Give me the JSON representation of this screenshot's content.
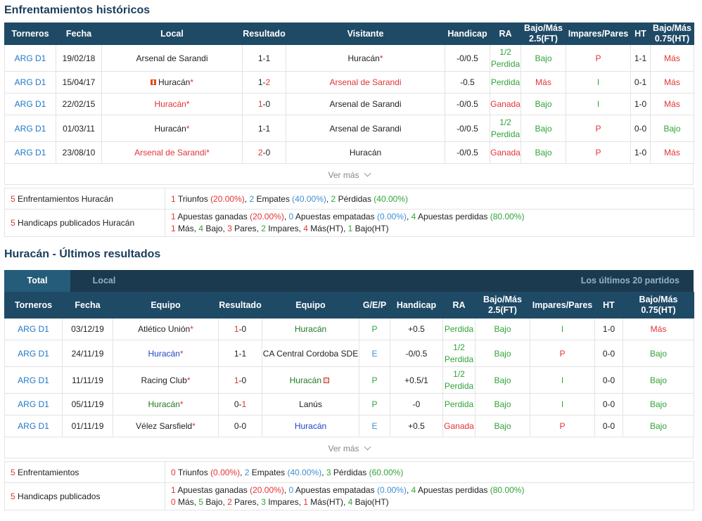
{
  "h2h": {
    "title": "Enfrentamientos históricos",
    "headers": [
      "Torneros",
      "Fecha",
      "Local",
      "Resultado",
      "Visitante",
      "Handicap",
      "RA",
      "Bajo/Más 2.5(FT)",
      "Impares/Pares",
      "HT",
      "Bajo/Más 0.75(HT)"
    ],
    "rows": [
      {
        "league": "ARG D1",
        "date": "19/02/18",
        "home": "Arsenal de Sarandi",
        "home_star": "",
        "score_a": "1",
        "score_sep": "-",
        "score_b": "1",
        "away": "Huracán",
        "away_star": "*",
        "handicap": "-0/0.5",
        "ra": "1/2 Perdida",
        "ou": "Bajo",
        "oe": "P",
        "ht": "1-1",
        "ouht": "Más"
      },
      {
        "league": "ARG D1",
        "date": "15/04/17",
        "home": "Huracán",
        "home_star": "*",
        "score_a": "1",
        "score_sep": "-",
        "score_b": "2",
        "away": "Arsenal de Sarandi",
        "away_star": "",
        "handicap": "-0.5",
        "ra": "Perdida",
        "ou": "Más",
        "oe": "I",
        "ht": "0-1",
        "ouht": "Más"
      },
      {
        "league": "ARG D1",
        "date": "22/02/15",
        "home": "Huracán",
        "home_star": "*",
        "score_a": "1",
        "score_sep": "-",
        "score_b": "0",
        "away": "Arsenal de Sarandi",
        "away_star": "",
        "handicap": "-0/0.5",
        "ra": "Ganada",
        "ou": "Bajo",
        "oe": "I",
        "ht": "1-0",
        "ouht": "Más"
      },
      {
        "league": "ARG D1",
        "date": "01/03/11",
        "home": "Huracán",
        "home_star": "*",
        "score_a": "1",
        "score_sep": "-",
        "score_b": "1",
        "away": "Arsenal de Sarandi",
        "away_star": "",
        "handicap": "-0/0.5",
        "ra": "1/2 Perdida",
        "ou": "Bajo",
        "oe": "P",
        "ht": "0-0",
        "ouht": "Bajo"
      },
      {
        "league": "ARG D1",
        "date": "23/08/10",
        "home": "Arsenal de Sarandi",
        "home_star": "*",
        "score_a": "2",
        "score_sep": "-",
        "score_b": "0",
        "away": "Huracán",
        "away_star": "",
        "handicap": "-0/0.5",
        "ra": "Ganada",
        "ou": "Bajo",
        "oe": "P",
        "ht": "1-0",
        "ouht": "Más"
      }
    ],
    "ver_mas": "Ver más",
    "summary1": {
      "label_n": "5",
      "label": "Enfrentamientos Huracán",
      "w": "1",
      "w_t": "Triunfos",
      "w_p": "(20.00%)",
      "d": "2",
      "d_t": "Empates",
      "d_p": "(40.00%)",
      "l": "2",
      "l_t": "Pérdidas",
      "l_p": "(40.00%)"
    },
    "summary2": {
      "label_n": "5",
      "label": "Handicaps publicados Huracán",
      "g": "1",
      "g_t": "Apuestas ganadas",
      "g_p": "(20.00%)",
      "e": "0",
      "e_t": "Apuestas empatadas",
      "e_p": "(0.00%)",
      "p": "4",
      "p_t": "Apuestas perdidas",
      "p_p": "(80.00%)",
      "l2": [
        {
          "n": "1",
          "t": "Más,"
        },
        {
          "n": "4",
          "t": "Bajo,"
        },
        {
          "n": "3",
          "t": "Pares,"
        },
        {
          "n": "2",
          "t": "Impares,"
        },
        {
          "n": "4",
          "t": "Más(HT),"
        },
        {
          "n": "1",
          "t": "Bajo(HT)"
        }
      ]
    }
  },
  "recent": {
    "title": "Huracán - Últimos resultados",
    "tabs": {
      "total": "Total",
      "local": "Local",
      "info": "Los últimos 20 partidos"
    },
    "headers": [
      "Torneros",
      "Fecha",
      "Equipo",
      "Resultado",
      "Equipo",
      "G/E/P",
      "Handicap",
      "RA",
      "Bajo/Más 2.5(FT)",
      "Impares/Pares",
      "HT",
      "Bajo/Más 0.75(HT)"
    ],
    "rows": [
      {
        "league": "ARG D1",
        "date": "03/12/19",
        "home": "Atlético Unión",
        "home_star": "*",
        "score_a": "1",
        "score_sep": "-",
        "score_b": "0",
        "away": "Huracán",
        "away_star": "",
        "gep": "P",
        "handicap": "+0.5",
        "ra": "Perdida",
        "ou": "Bajo",
        "oe": "I",
        "ht": "1-0",
        "ouht": "Más"
      },
      {
        "league": "ARG D1",
        "date": "24/11/19",
        "home": "Huracán",
        "home_star": "*",
        "score_a": "1",
        "score_sep": "-",
        "score_b": "1",
        "away": "CA Central Cordoba SDE",
        "away_star": "",
        "gep": "E",
        "handicap": "-0/0.5",
        "ra": "1/2 Perdida",
        "ou": "Bajo",
        "oe": "P",
        "ht": "0-0",
        "ouht": "Bajo"
      },
      {
        "league": "ARG D1",
        "date": "11/11/19",
        "home": "Racing Club",
        "home_star": "*",
        "score_a": "1",
        "score_sep": "-",
        "score_b": "0",
        "away": "Huracán",
        "away_star": "",
        "gep": "P",
        "handicap": "+0.5/1",
        "ra": "1/2 Perdida",
        "ou": "Bajo",
        "oe": "I",
        "ht": "0-0",
        "ouht": "Bajo"
      },
      {
        "league": "ARG D1",
        "date": "05/11/19",
        "home": "Huracán",
        "home_star": "*",
        "score_a": "0",
        "score_sep": "-",
        "score_b": "1",
        "away": "Lanús",
        "away_star": "",
        "gep": "P",
        "handicap": "-0",
        "ra": "Perdida",
        "ou": "Bajo",
        "oe": "I",
        "ht": "0-0",
        "ouht": "Bajo"
      },
      {
        "league": "ARG D1",
        "date": "01/11/19",
        "home": "Vélez Sarsfield",
        "home_star": "*",
        "score_a": "0",
        "score_sep": "-",
        "score_b": "0",
        "away": "Huracán",
        "away_star": "",
        "gep": "E",
        "handicap": "+0.5",
        "ra": "Ganada",
        "ou": "Bajo",
        "oe": "P",
        "ht": "0-0",
        "ouht": "Bajo"
      }
    ],
    "ver_mas": "Ver más",
    "summary1": {
      "label_n": "5",
      "label": "Enfrentamientos",
      "w": "0",
      "w_t": "Triunfos",
      "w_p": "(0.00%)",
      "d": "2",
      "d_t": "Empates",
      "d_p": "(40.00%)",
      "l": "3",
      "l_t": "Pérdidas",
      "l_p": "(60.00%)"
    },
    "summary2": {
      "label_n": "5",
      "label": "Handicaps publicados",
      "g": "1",
      "g_t": "Apuestas ganadas",
      "g_p": "(20.00%)",
      "e": "0",
      "e_t": "Apuestas empatadas",
      "e_p": "(0.00%)",
      "p": "4",
      "p_t": "Apuestas perdidas",
      "p_p": "(80.00%)",
      "l2": [
        {
          "n": "0",
          "t": "Más,"
        },
        {
          "n": "5",
          "t": "Bajo,"
        },
        {
          "n": "2",
          "t": "Pares,"
        },
        {
          "n": "3",
          "t": "Impares,"
        },
        {
          "n": "1",
          "t": "Más(HT),"
        },
        {
          "n": "4",
          "t": "Bajo(HT)"
        }
      ]
    }
  },
  "colors": {
    "header_bg": "#1f4a66",
    "tab_bar": "#1b3a4f",
    "red": "#e23434",
    "green": "#31a33a",
    "blue": "#3f8fd0"
  },
  "icons": [
    "warning-icon",
    "flag-icon",
    "chevron-down-icon"
  ]
}
